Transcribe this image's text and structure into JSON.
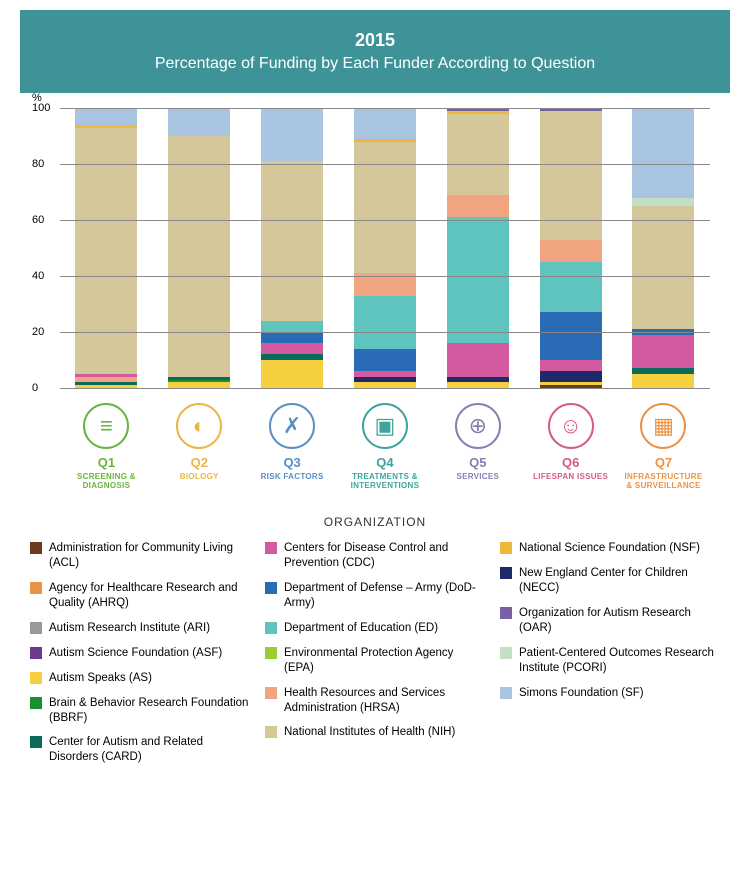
{
  "header": {
    "year": "2015",
    "subtitle": "Percentage of Funding by Each Funder According to Question"
  },
  "chart": {
    "ylabel": "%",
    "ymax": 100,
    "yticks": [
      0,
      20,
      40,
      60,
      80,
      100
    ],
    "grid_color": "#888",
    "categories": [
      {
        "q": "Q1",
        "label": "SCREENING & DIAGNOSIS",
        "color": "#6ab33e",
        "icon": "≡"
      },
      {
        "q": "Q2",
        "label": "BIOLOGY",
        "color": "#e8b748",
        "icon": "◐"
      },
      {
        "q": "Q3",
        "label": "RISK FACTORS",
        "color": "#5a8dc4",
        "icon": "✗"
      },
      {
        "q": "Q4",
        "label": "TREATMENTS & INTERVENTIONS",
        "color": "#3fa39d",
        "icon": "▣"
      },
      {
        "q": "Q5",
        "label": "SERVICES",
        "color": "#8a7db1",
        "icon": "⊕"
      },
      {
        "q": "Q6",
        "label": "LIFESPAN ISSUES",
        "color": "#d45a8a",
        "icon": "☺"
      },
      {
        "q": "Q7",
        "label": "INFRASTRUCTURE & SURVEILLANCE",
        "color": "#e89343",
        "icon": "▦"
      }
    ],
    "bars": [
      [
        {
          "org": "AS",
          "v": 1
        },
        {
          "org": "CARD",
          "v": 1
        },
        {
          "org": "HRSA",
          "v": 2
        },
        {
          "org": "CDC",
          "v": 1
        },
        {
          "org": "NIH",
          "v": 88
        },
        {
          "org": "NSF",
          "v": 1
        },
        {
          "org": "SF",
          "v": 6
        }
      ],
      [
        {
          "org": "AS",
          "v": 2
        },
        {
          "org": "BBRF",
          "v": 1
        },
        {
          "org": "CARD",
          "v": 1
        },
        {
          "org": "NIH",
          "v": 86
        },
        {
          "org": "SF",
          "v": 10
        }
      ],
      [
        {
          "org": "AS",
          "v": 10
        },
        {
          "org": "CARD",
          "v": 2
        },
        {
          "org": "CDC",
          "v": 4
        },
        {
          "org": "DoD",
          "v": 4
        },
        {
          "org": "ED",
          "v": 4
        },
        {
          "org": "NIH",
          "v": 57
        },
        {
          "org": "SF",
          "v": 19
        }
      ],
      [
        {
          "org": "AS",
          "v": 2
        },
        {
          "org": "NECC",
          "v": 2
        },
        {
          "org": "CDC",
          "v": 2
        },
        {
          "org": "DoD",
          "v": 8
        },
        {
          "org": "ED",
          "v": 19
        },
        {
          "org": "HRSA",
          "v": 8
        },
        {
          "org": "NIH",
          "v": 47
        },
        {
          "org": "NSF",
          "v": 1
        },
        {
          "org": "SF",
          "v": 11
        }
      ],
      [
        {
          "org": "AS",
          "v": 2
        },
        {
          "org": "NECC",
          "v": 2
        },
        {
          "org": "CDC",
          "v": 12
        },
        {
          "org": "ED",
          "v": 45
        },
        {
          "org": "HRSA",
          "v": 8
        },
        {
          "org": "NIH",
          "v": 29
        },
        {
          "org": "NSF",
          "v": 1
        },
        {
          "org": "OAR",
          "v": 1
        }
      ],
      [
        {
          "org": "ACL",
          "v": 1
        },
        {
          "org": "AS",
          "v": 1
        },
        {
          "org": "NECC",
          "v": 4
        },
        {
          "org": "CDC",
          "v": 4
        },
        {
          "org": "DoD",
          "v": 17
        },
        {
          "org": "ED",
          "v": 18
        },
        {
          "org": "HRSA",
          "v": 8
        },
        {
          "org": "NIH",
          "v": 46
        },
        {
          "org": "OAR",
          "v": 1
        }
      ],
      [
        {
          "org": "AS",
          "v": 5
        },
        {
          "org": "CARD",
          "v": 2
        },
        {
          "org": "CDC",
          "v": 12
        },
        {
          "org": "DoD",
          "v": 2
        },
        {
          "org": "NIH",
          "v": 44
        },
        {
          "org": "PCORI",
          "v": 3
        },
        {
          "org": "SF",
          "v": 32
        }
      ]
    ]
  },
  "orgs": {
    "ACL": {
      "name": "Administration for Community Living (ACL)",
      "color": "#6b3a1f"
    },
    "AHRQ": {
      "name": "Agency for Healthcare Research and Quality (AHRQ)",
      "color": "#e89343"
    },
    "ARI": {
      "name": "Autism Research Institute (ARI)",
      "color": "#9a9a9a"
    },
    "ASF": {
      "name": "Autism Science Foundation (ASF)",
      "color": "#6b3a8f"
    },
    "AS": {
      "name": "Autism Speaks (AS)",
      "color": "#f4d03f"
    },
    "BBRF": {
      "name": "Brain & Behavior Research Foundation (BBRF)",
      "color": "#1a8f3a"
    },
    "CARD": {
      "name": "Center for Autism and Related Disorders (CARD)",
      "color": "#0a6b5a"
    },
    "CDC": {
      "name": "Centers for Disease Control and Prevention (CDC)",
      "color": "#d45aa0"
    },
    "DoD": {
      "name": "Department of Defense – Army (DoD-Army)",
      "color": "#2a6bb5"
    },
    "ED": {
      "name": "Department of Education (ED)",
      "color": "#5fc4bd"
    },
    "EPA": {
      "name": "Environmental Protection Agency (EPA)",
      "color": "#9acd32"
    },
    "HRSA": {
      "name": "Health Resources and Services Administration (HRSA)",
      "color": "#f0a580"
    },
    "NIH": {
      "name": "National Institutes of Health (NIH)",
      "color": "#d4c89a"
    },
    "NSF": {
      "name": "National Science Foundation (NSF)",
      "color": "#f0b838"
    },
    "NECC": {
      "name": "New England Center for Children (NECC)",
      "color": "#1f2a6b"
    },
    "OAR": {
      "name": "Organization for Autism Research (OAR)",
      "color": "#7a5fa8"
    },
    "PCORI": {
      "name": "Patient-Centered Outcomes Research Institute (PCORI)",
      "color": "#c4e0c4"
    },
    "SF": {
      "name": "Simons Foundation (SF)",
      "color": "#a8c4e0"
    }
  },
  "legendCols": [
    [
      "ACL",
      "AHRQ",
      "ARI",
      "ASF",
      "AS",
      "BBRF",
      "CARD"
    ],
    [
      "CDC",
      "DoD",
      "ED",
      "EPA",
      "HRSA",
      "NIH"
    ],
    [
      "NSF",
      "NECC",
      "OAR",
      "PCORI",
      "SF"
    ]
  ],
  "orgTitle": "ORGANIZATION"
}
